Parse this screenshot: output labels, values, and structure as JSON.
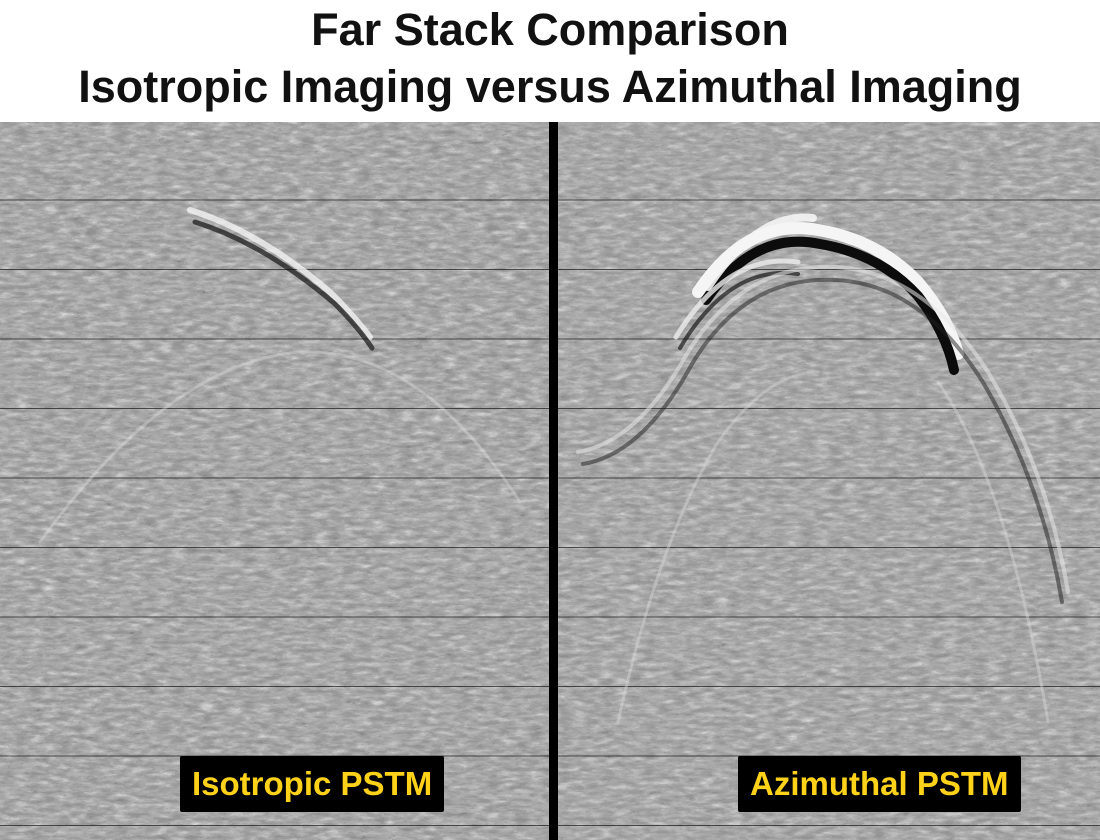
{
  "title": {
    "line1": "Far Stack Comparison",
    "line2": "Isotropic Imaging versus Azimuthal Imaging"
  },
  "panels": [
    {
      "label": "Isotropic PSTM"
    },
    {
      "label": "Azimuthal PSTM"
    }
  ],
  "colors": {
    "label_background": "#000000",
    "label_text": "#ffd21a",
    "divider": "#000000"
  }
}
